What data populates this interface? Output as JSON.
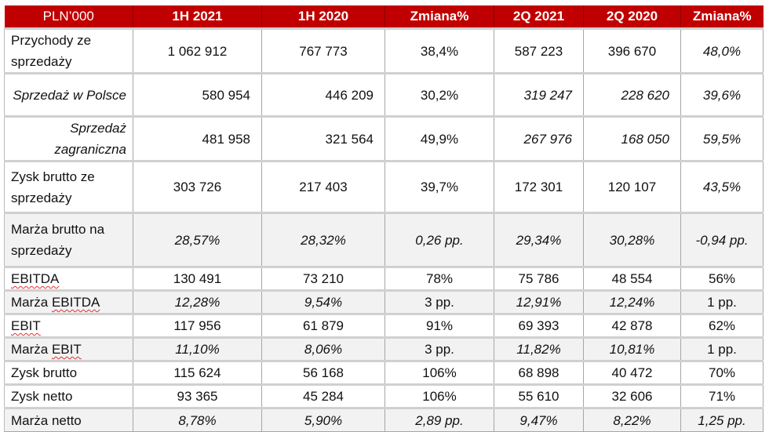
{
  "header": [
    "PLN’000",
    "1H 2021",
    "1H 2020",
    "Zmiana%",
    "2Q 2021",
    "2Q 2020",
    "Zmiana%"
  ],
  "rows": [
    {
      "label": "Przychody ze sprzedaży",
      "values": [
        "1 062 912",
        "767 773",
        "38,4%",
        "587 223",
        "396 670",
        "48,0%"
      ]
    },
    {
      "label": "Sprzedaż w Polsce",
      "values": [
        "580 954",
        "446 209",
        "30,2%",
        "319 247",
        "228 620",
        "39,6%"
      ]
    },
    {
      "label": "Sprzedaż zagraniczna",
      "values": [
        "481 958",
        "321 564",
        "49,9%",
        "267 976",
        "168 050",
        "59,5%"
      ]
    },
    {
      "label": "Zysk brutto ze sprzedaży",
      "values": [
        "303 726",
        "217 403",
        "39,7%",
        "172 301",
        "120 107",
        "43,5%"
      ]
    },
    {
      "label": "Marża brutto na sprzedaży",
      "values": [
        "28,57%",
        "28,32%",
        "0,26 pp.",
        "29,34%",
        "30,28%",
        "-0,94 pp."
      ]
    },
    {
      "label": "EBITDA",
      "values": [
        "130 491",
        "73 210",
        "78%",
        "75 786",
        "48 554",
        "56%"
      ]
    },
    {
      "label": "Marża EBITDA",
      "values": [
        "12,28%",
        "9,54%",
        "3 pp.",
        "12,91%",
        "12,24%",
        "1 pp."
      ]
    },
    {
      "label": "EBIT",
      "values": [
        "117 956",
        "61 879",
        "91%",
        "69 393",
        "42 878",
        "62%"
      ]
    },
    {
      "label": "Marża EBIT",
      "values": [
        "11,10%",
        "8,06%",
        "3 pp.",
        "11,82%",
        "10,81%",
        "1 pp."
      ]
    },
    {
      "label": "Zysk brutto",
      "values": [
        "115 624",
        "56 168",
        "106%",
        "68 898",
        "40 472",
        "70%"
      ]
    },
    {
      "label": "Zysk netto",
      "values": [
        "93 365",
        "45 284",
        "106%",
        "55 610",
        "32 606",
        "71%"
      ]
    },
    {
      "label": "Marża netto",
      "values": [
        "8,78%",
        "5,90%",
        "2,89 pp.",
        "9,47%",
        "8,22%",
        "1,25 pp."
      ]
    }
  ],
  "colors": {
    "header_bg": "#c00000",
    "shade_bg": "#f2f2f2"
  }
}
